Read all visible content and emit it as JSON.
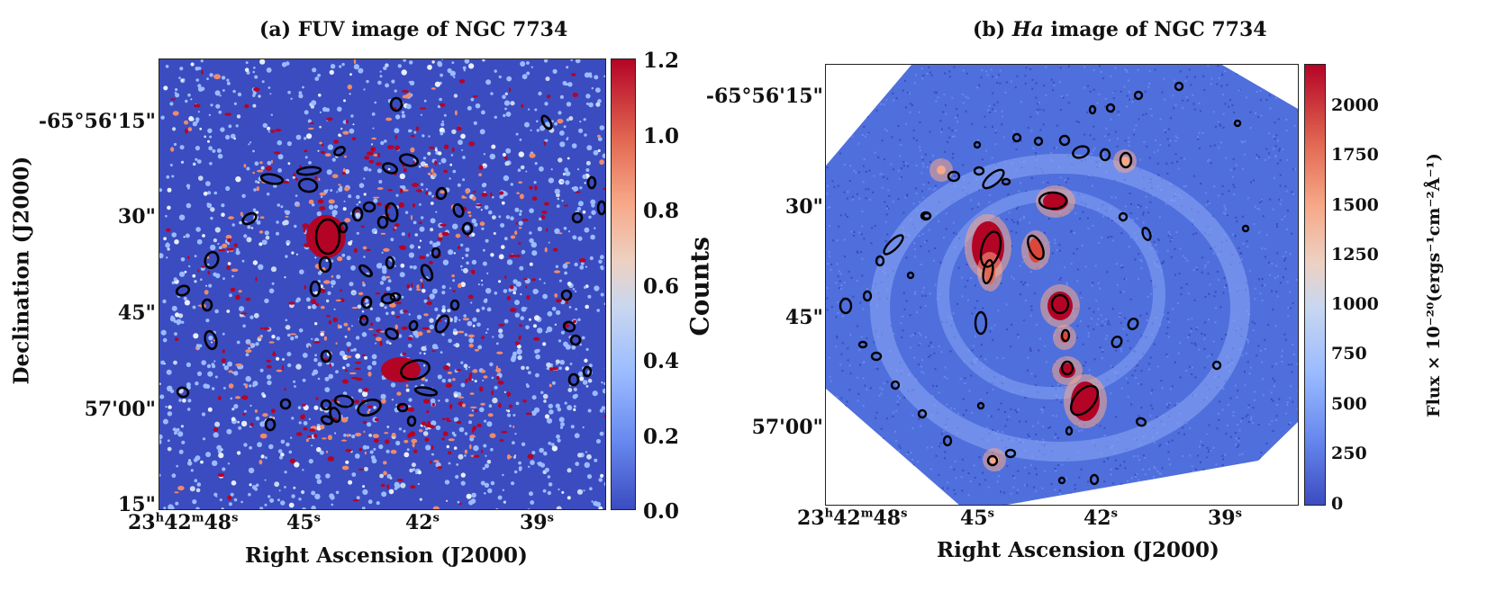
{
  "panel_a": {
    "title_prefix": "(a) FUV image of NGC 7734",
    "y_ticks": [
      "-65°56'15\"",
      "30\"",
      "45\"",
      "57'00\"",
      "15\""
    ],
    "x_ticks": [
      "23h42m48s",
      "45s",
      "42s",
      "39s"
    ],
    "x_tick_labels": {
      "t0_h": "23",
      "t0_m": "42",
      "t0_s": "48",
      "t1": "45",
      "t2": "42",
      "t3": "39"
    },
    "xlabel": "Right Ascension (J2000)",
    "ylabel": "Declination (J2000)",
    "colorbar_ticks": [
      "1.2",
      "1.0",
      "0.8",
      "0.6",
      "0.4",
      "0.2",
      "0.0"
    ],
    "colorbar_label": "Counts"
  },
  "panel_b": {
    "title_prefix": "(b) ",
    "title_italic": "Ha",
    "title_suffix": " image of NGC 7734",
    "y_ticks": [
      "-65°56'15\"",
      "30\"",
      "45\"",
      "57'00\""
    ],
    "x_tick_labels": {
      "t0_h": "23",
      "t0_m": "42",
      "t0_s": "48",
      "t1": "45",
      "t2": "42",
      "t3": "39"
    },
    "xlabel": "Right Ascension (J2000)",
    "colorbar_ticks": [
      "2000",
      "1750",
      "1500",
      "1250",
      "1000",
      "750",
      "500",
      "250",
      "0"
    ],
    "colorbar_label": "Flux × 10⁻²⁰(ergs⁻¹cm⁻²Å⁻¹)"
  },
  "colors": {
    "background_blue": "#3b4cc0",
    "mid_blue": "#9abbff",
    "hot_red": "#b40426",
    "ellipse_stroke": "#000000"
  }
}
